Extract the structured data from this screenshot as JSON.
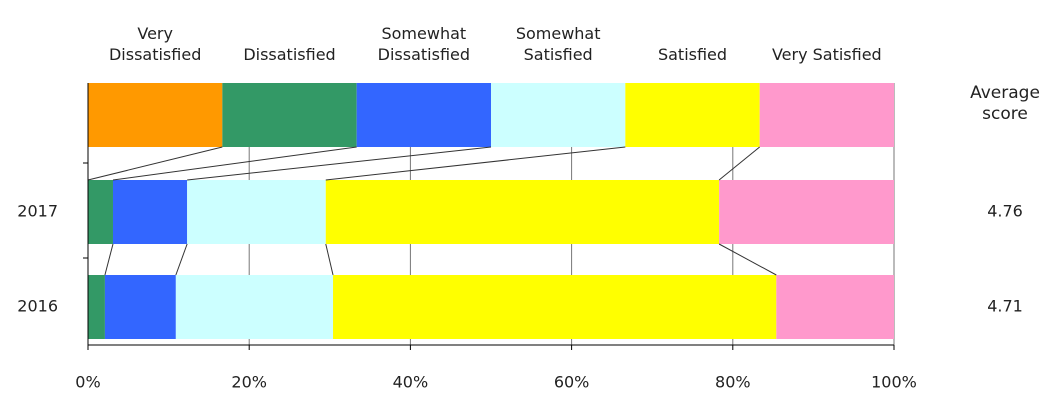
{
  "chart_data": {
    "type": "stacked_bar_horizontal",
    "categories": [
      "2017",
      "2016"
    ],
    "series": [
      {
        "name": "Very Dissatisfied",
        "color": "#ff9900",
        "values": [
          0,
          0
        ]
      },
      {
        "name": "Dissatisfied",
        "color": "#339966",
        "values": [
          3.1,
          2.1
        ]
      },
      {
        "name": "Somewhat Dissatisfied",
        "color": "#3366ff",
        "values": [
          9.2,
          8.8
        ]
      },
      {
        "name": "Somewhat Satisfied",
        "color": "#ccffff",
        "values": [
          17.2,
          19.5
        ]
      },
      {
        "name": "Satisfied",
        "color": "#ffff00",
        "values": [
          48.8,
          55.0
        ]
      },
      {
        "name": "Very Satisfied",
        "color": "#ff99cc",
        "values": [
          21.7,
          14.6
        ]
      }
    ],
    "xlim": [
      0,
      100
    ],
    "xticks": [
      {
        "value": 0,
        "label": "0%"
      },
      {
        "value": 20,
        "label": "20%"
      },
      {
        "value": 40,
        "label": "40%"
      },
      {
        "value": 60,
        "label": "60%"
      },
      {
        "value": 80,
        "label": "80%"
      },
      {
        "value": 100,
        "label": "100%"
      }
    ],
    "grid": true,
    "average_score_title": "Average score",
    "average_scores": [
      4.76,
      4.71
    ]
  }
}
